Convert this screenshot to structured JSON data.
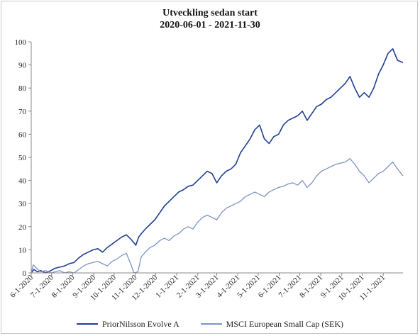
{
  "chart_data": {
    "type": "line",
    "title": "Utveckling sedan start",
    "subtitle": "2020-06-01 - 2021-11-30",
    "xlabel": "",
    "ylabel": "",
    "ylim": [
      0,
      100
    ],
    "yticks": [
      0,
      10,
      20,
      30,
      40,
      50,
      60,
      70,
      80,
      90,
      100
    ],
    "xticks": [
      "6-1-2020",
      "7-1-2020",
      "8-1-2020",
      "9-1-2020",
      "10-1-2020",
      "11-1-2020",
      "12-1-2020",
      "1-1-2021",
      "2-1-2021",
      "3-1-2021",
      "4-1-2021",
      "5-1-2021",
      "6-1-2021",
      "7-1-2021",
      "8-1-2021",
      "9-1-2021",
      "10-1-2021",
      "11-1-2021"
    ],
    "x_range": [
      "2020-06-01",
      "2021-11-30"
    ],
    "grid": false,
    "legend_position": "bottom",
    "series": [
      {
        "name": "PriorNilsson Evolve A",
        "color": "#1f3f8f",
        "points": [
          [
            "2020-06-01",
            0
          ],
          [
            "2020-06-05",
            1.5
          ],
          [
            "2020-06-10",
            0.5
          ],
          [
            "2020-06-15",
            1
          ],
          [
            "2020-06-22",
            0
          ],
          [
            "2020-06-30",
            1
          ],
          [
            "2020-07-06",
            2
          ],
          [
            "2020-07-13",
            2.5
          ],
          [
            "2020-07-20",
            3
          ],
          [
            "2020-07-27",
            4
          ],
          [
            "2020-08-03",
            4.5
          ],
          [
            "2020-08-10",
            6.5
          ],
          [
            "2020-08-17",
            8
          ],
          [
            "2020-08-24",
            9
          ],
          [
            "2020-08-31",
            10
          ],
          [
            "2020-09-07",
            10.5
          ],
          [
            "2020-09-14",
            9
          ],
          [
            "2020-09-21",
            11
          ],
          [
            "2020-09-28",
            12.5
          ],
          [
            "2020-10-05",
            14
          ],
          [
            "2020-10-12",
            15.5
          ],
          [
            "2020-10-19",
            16.5
          ],
          [
            "2020-10-26",
            14.5
          ],
          [
            "2020-11-02",
            12
          ],
          [
            "2020-11-06",
            15.5
          ],
          [
            "2020-11-10",
            17
          ],
          [
            "2020-11-16",
            19
          ],
          [
            "2020-11-23",
            21
          ],
          [
            "2020-11-30",
            23
          ],
          [
            "2020-12-07",
            26
          ],
          [
            "2020-12-14",
            29
          ],
          [
            "2020-12-21",
            31
          ],
          [
            "2020-12-28",
            33
          ],
          [
            "2021-01-04",
            35
          ],
          [
            "2021-01-11",
            36
          ],
          [
            "2021-01-18",
            37.5
          ],
          [
            "2021-01-25",
            38
          ],
          [
            "2021-02-01",
            40
          ],
          [
            "2021-02-08",
            42
          ],
          [
            "2021-02-15",
            44
          ],
          [
            "2021-02-22",
            43
          ],
          [
            "2021-03-01",
            39
          ],
          [
            "2021-03-08",
            42
          ],
          [
            "2021-03-15",
            44
          ],
          [
            "2021-03-22",
            45
          ],
          [
            "2021-03-29",
            47
          ],
          [
            "2021-04-05",
            52
          ],
          [
            "2021-04-12",
            55
          ],
          [
            "2021-04-19",
            58
          ],
          [
            "2021-04-26",
            62
          ],
          [
            "2021-05-03",
            64
          ],
          [
            "2021-05-10",
            58
          ],
          [
            "2021-05-17",
            56
          ],
          [
            "2021-05-24",
            59
          ],
          [
            "2021-05-31",
            60
          ],
          [
            "2021-06-07",
            64
          ],
          [
            "2021-06-14",
            66
          ],
          [
            "2021-06-21",
            67
          ],
          [
            "2021-06-28",
            68
          ],
          [
            "2021-07-05",
            70
          ],
          [
            "2021-07-12",
            66
          ],
          [
            "2021-07-19",
            69
          ],
          [
            "2021-07-26",
            72
          ],
          [
            "2021-08-02",
            73
          ],
          [
            "2021-08-09",
            75
          ],
          [
            "2021-08-16",
            76
          ],
          [
            "2021-08-23",
            78
          ],
          [
            "2021-08-30",
            80
          ],
          [
            "2021-09-06",
            82
          ],
          [
            "2021-09-13",
            85
          ],
          [
            "2021-09-20",
            80
          ],
          [
            "2021-09-27",
            76
          ],
          [
            "2021-10-04",
            78
          ],
          [
            "2021-10-11",
            76
          ],
          [
            "2021-10-18",
            80
          ],
          [
            "2021-10-25",
            86
          ],
          [
            "2021-11-01",
            90
          ],
          [
            "2021-11-08",
            95
          ],
          [
            "2021-11-15",
            97
          ],
          [
            "2021-11-22",
            92
          ],
          [
            "2021-11-30",
            91
          ]
        ]
      },
      {
        "name": "MSCI European Small Cap (SEK)",
        "color": "#7c93c8",
        "points": [
          [
            "2020-06-01",
            0
          ],
          [
            "2020-06-04",
            3.5
          ],
          [
            "2020-06-09",
            2
          ],
          [
            "2020-06-15",
            0.5
          ],
          [
            "2020-06-22",
            1
          ],
          [
            "2020-06-30",
            0
          ],
          [
            "2020-07-06",
            0.5
          ],
          [
            "2020-07-13",
            1
          ],
          [
            "2020-07-20",
            0
          ],
          [
            "2020-07-27",
            0.5
          ],
          [
            "2020-08-03",
            0
          ],
          [
            "2020-08-10",
            1.5
          ],
          [
            "2020-08-17",
            3
          ],
          [
            "2020-08-24",
            4
          ],
          [
            "2020-08-31",
            4.5
          ],
          [
            "2020-09-07",
            5
          ],
          [
            "2020-09-14",
            4
          ],
          [
            "2020-09-21",
            3
          ],
          [
            "2020-09-28",
            5
          ],
          [
            "2020-10-05",
            6
          ],
          [
            "2020-10-12",
            7.5
          ],
          [
            "2020-10-19",
            8.5
          ],
          [
            "2020-10-26",
            3.5
          ],
          [
            "2020-10-30",
            0
          ],
          [
            "2020-11-05",
            0.5
          ],
          [
            "2020-11-10",
            7
          ],
          [
            "2020-11-16",
            9
          ],
          [
            "2020-11-23",
            11
          ],
          [
            "2020-11-30",
            12
          ],
          [
            "2020-12-07",
            14
          ],
          [
            "2020-12-14",
            15
          ],
          [
            "2020-12-21",
            14
          ],
          [
            "2020-12-28",
            16
          ],
          [
            "2021-01-04",
            17
          ],
          [
            "2021-01-11",
            19
          ],
          [
            "2021-01-18",
            20
          ],
          [
            "2021-01-25",
            19
          ],
          [
            "2021-02-01",
            22
          ],
          [
            "2021-02-08",
            24
          ],
          [
            "2021-02-15",
            25
          ],
          [
            "2021-02-22",
            24
          ],
          [
            "2021-03-01",
            23
          ],
          [
            "2021-03-08",
            26
          ],
          [
            "2021-03-15",
            28
          ],
          [
            "2021-03-22",
            29
          ],
          [
            "2021-03-29",
            30
          ],
          [
            "2021-04-05",
            31
          ],
          [
            "2021-04-12",
            33
          ],
          [
            "2021-04-19",
            34
          ],
          [
            "2021-04-26",
            35
          ],
          [
            "2021-05-03",
            34
          ],
          [
            "2021-05-10",
            33
          ],
          [
            "2021-05-17",
            35
          ],
          [
            "2021-05-24",
            36
          ],
          [
            "2021-05-31",
            37
          ],
          [
            "2021-06-07",
            37.5
          ],
          [
            "2021-06-14",
            38.5
          ],
          [
            "2021-06-21",
            39
          ],
          [
            "2021-06-28",
            38
          ],
          [
            "2021-07-05",
            40
          ],
          [
            "2021-07-12",
            37
          ],
          [
            "2021-07-19",
            39
          ],
          [
            "2021-07-26",
            42
          ],
          [
            "2021-08-02",
            44
          ],
          [
            "2021-08-09",
            45
          ],
          [
            "2021-08-16",
            46
          ],
          [
            "2021-08-23",
            47
          ],
          [
            "2021-08-30",
            47.5
          ],
          [
            "2021-09-06",
            48
          ],
          [
            "2021-09-13",
            49.5
          ],
          [
            "2021-09-20",
            47
          ],
          [
            "2021-09-27",
            44
          ],
          [
            "2021-10-04",
            42
          ],
          [
            "2021-10-11",
            39
          ],
          [
            "2021-10-18",
            41
          ],
          [
            "2021-10-25",
            43
          ],
          [
            "2021-11-01",
            44
          ],
          [
            "2021-11-08",
            46
          ],
          [
            "2021-11-15",
            48
          ],
          [
            "2021-11-22",
            45
          ],
          [
            "2021-11-30",
            42
          ]
        ]
      }
    ]
  }
}
